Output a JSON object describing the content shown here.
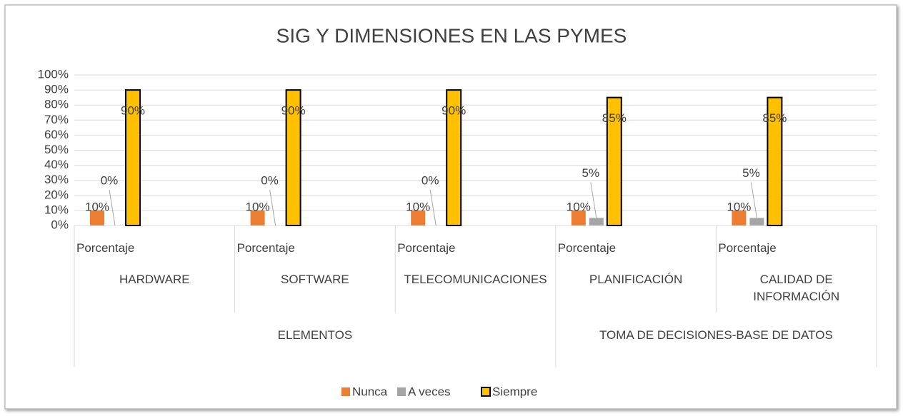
{
  "chart_data": {
    "type": "bar",
    "title": "SIG Y DIMENSIONES EN LAS PYMES",
    "categories": [
      "Porcentaje",
      "Porcentaje",
      "Porcentaje",
      "Porcentaje",
      "Porcentaje"
    ],
    "category_level2": [
      "HARDWARE",
      "SOFTWARE",
      "TELECOMUNICACIONES",
      "PLANIFICACIÓN",
      "CALIDAD DE INFORMACIÓN"
    ],
    "category_level3": [
      "ELEMENTOS",
      null,
      null,
      "TOMA DE DECISIONES-BASE DE DATOS",
      null
    ],
    "series": [
      {
        "name": "Nunca",
        "color": "#ed7d31",
        "values": [
          10,
          10,
          10,
          10,
          10
        ],
        "value_labels": [
          "10%",
          "10%",
          "10%",
          "10%",
          "10%"
        ]
      },
      {
        "name": "A veces",
        "color": "#a5a5a5",
        "values": [
          0,
          0,
          0,
          5,
          5
        ],
        "value_labels": [
          "0%",
          "0%",
          "0%",
          "5%",
          "5%"
        ]
      },
      {
        "name": "Siempre",
        "color": "#ffc000",
        "values": [
          90,
          90,
          90,
          85,
          85
        ],
        "value_labels": [
          "90%",
          "90%",
          "90%",
          "85%",
          "85%"
        ]
      }
    ],
    "ylim": [
      0,
      100
    ],
    "yticks": [
      {
        "value": 0,
        "label": "0%"
      },
      {
        "value": 10,
        "label": "10%"
      },
      {
        "value": 20,
        "label": "20%"
      },
      {
        "value": 30,
        "label": "30%"
      },
      {
        "value": 40,
        "label": "40%"
      },
      {
        "value": 50,
        "label": "50%"
      },
      {
        "value": 60,
        "label": "60%"
      },
      {
        "value": 70,
        "label": "70%"
      },
      {
        "value": 80,
        "label": "80%"
      },
      {
        "value": 90,
        "label": "90%"
      },
      {
        "value": 100,
        "label": "100%"
      }
    ],
    "grid": true,
    "legend": "bottom"
  }
}
